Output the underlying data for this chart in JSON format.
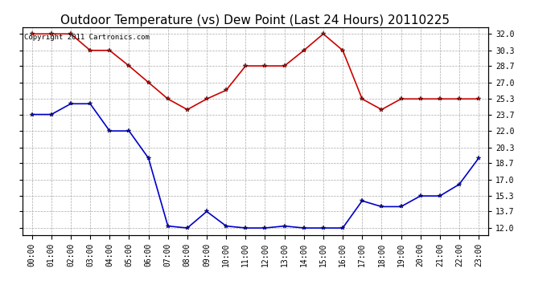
{
  "title": "Outdoor Temperature (vs) Dew Point (Last 24 Hours) 20110225",
  "copyright_text": "Copyright 2011 Cartronics.com",
  "x_labels": [
    "00:00",
    "01:00",
    "02:00",
    "03:00",
    "04:00",
    "05:00",
    "06:00",
    "07:00",
    "08:00",
    "09:00",
    "10:00",
    "11:00",
    "12:00",
    "13:00",
    "14:00",
    "15:00",
    "16:00",
    "17:00",
    "18:00",
    "19:00",
    "20:00",
    "21:00",
    "22:00",
    "23:00"
  ],
  "temp_data": [
    32.0,
    32.0,
    32.0,
    30.3,
    30.3,
    28.7,
    27.0,
    25.3,
    24.2,
    25.3,
    26.2,
    28.7,
    28.7,
    28.7,
    30.3,
    32.0,
    30.3,
    25.3,
    24.2,
    25.3,
    25.3,
    25.3,
    25.3,
    25.3
  ],
  "dew_data": [
    23.7,
    23.7,
    24.8,
    24.8,
    22.0,
    22.0,
    19.2,
    12.2,
    12.0,
    13.7,
    12.2,
    12.0,
    12.0,
    12.2,
    12.0,
    12.0,
    12.0,
    14.8,
    14.2,
    14.2,
    15.3,
    15.3,
    16.5,
    19.2
  ],
  "temp_color": "#cc0000",
  "dew_color": "#0000cc",
  "background_color": "#ffffff",
  "plot_bg_color": "#ffffff",
  "grid_color": "#aaaaaa",
  "y_ticks": [
    12.0,
    13.7,
    15.3,
    17.0,
    18.7,
    20.3,
    22.0,
    23.7,
    25.3,
    27.0,
    28.7,
    30.3,
    32.0
  ],
  "ylim": [
    11.3,
    32.7
  ],
  "marker": "*",
  "marker_size": 4,
  "linewidth": 1.2,
  "title_fontsize": 11,
  "tick_fontsize": 7,
  "copyright_fontsize": 6.5
}
